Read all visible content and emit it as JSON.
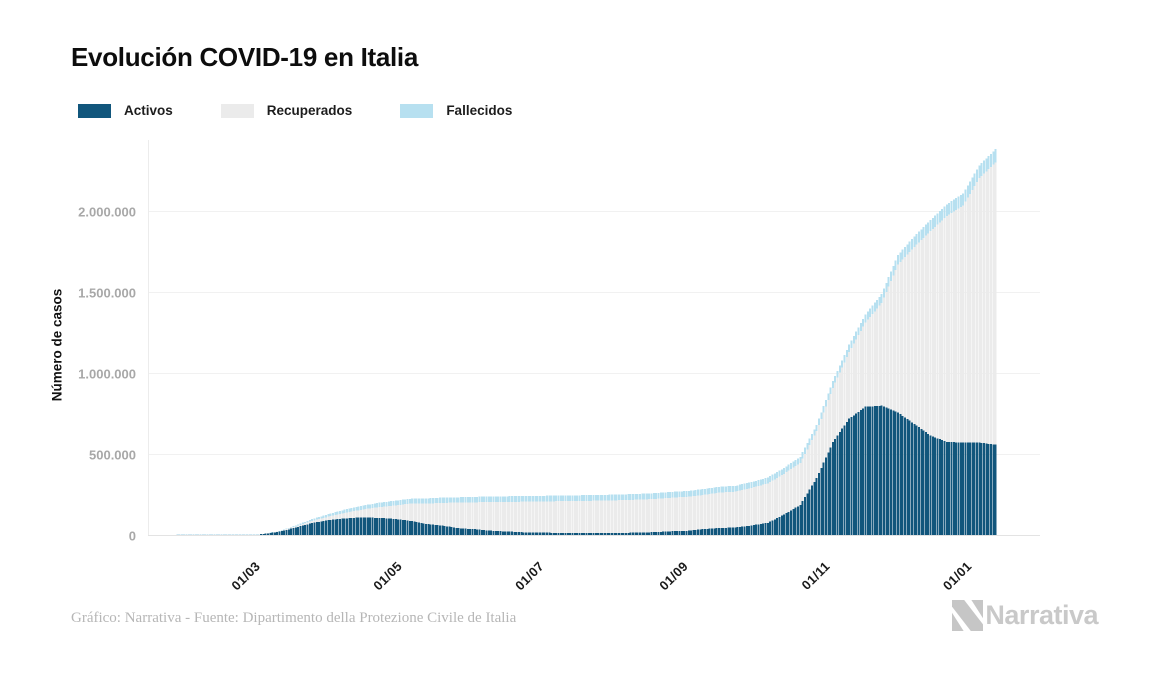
{
  "footer": {
    "credit": "Gráfico: Narrativa - Fuente: Dipartimento della Protezione Civile de Italia",
    "brand": "Narrativa"
  },
  "chart_data": {
    "type": "bar",
    "stacked": true,
    "title": "Evolución COVID-19 en Italia",
    "xlabel": "",
    "ylabel": "Número de casos",
    "grid": true,
    "legend_position": "top-left",
    "legend": [
      {
        "key": "activos",
        "label": "Activos",
        "color": "#11567c"
      },
      {
        "key": "recuperados",
        "label": "Recuperados",
        "color": "#ebebeb"
      },
      {
        "key": "fallecidos",
        "label": "Fallecidos",
        "color": "#b7e0f0"
      }
    ],
    "stack_order": [
      "activos",
      "recuperados",
      "fallecidos"
    ],
    "y_ticks": [
      "0",
      "500.000",
      "1.000.000",
      "1.500.000",
      "2.000.000"
    ],
    "y_tick_values": [
      0,
      500000,
      1000000,
      1500000,
      2000000
    ],
    "ylim": [
      0,
      2450000
    ],
    "x_ticks": [
      "01/03",
      "01/05",
      "01/07",
      "01/09",
      "01/11",
      "01/01"
    ],
    "x_tick_dates": [
      "2020-03-01",
      "2020-05-01",
      "2020-07-01",
      "2020-09-01",
      "2020-11-01",
      "2021-01-01"
    ],
    "samples": [
      {
        "date": "2020-01-31",
        "activos": 2,
        "recuperados": 0,
        "fallecidos": 0
      },
      {
        "date": "2020-02-07",
        "activos": 3,
        "recuperados": 0,
        "fallecidos": 0
      },
      {
        "date": "2020-02-14",
        "activos": 3,
        "recuperados": 0,
        "fallecidos": 0
      },
      {
        "date": "2020-02-21",
        "activos": 17,
        "recuperados": 1,
        "fallecidos": 1
      },
      {
        "date": "2020-02-24",
        "activos": 221,
        "recuperados": 1,
        "fallecidos": 7
      },
      {
        "date": "2020-03-01",
        "activos": 1577,
        "recuperados": 83,
        "fallecidos": 34
      },
      {
        "date": "2020-03-08",
        "activos": 6387,
        "recuperados": 622,
        "fallecidos": 366
      },
      {
        "date": "2020-03-15",
        "activos": 20603,
        "recuperados": 2335,
        "fallecidos": 1809
      },
      {
        "date": "2020-03-22",
        "activos": 46638,
        "recuperados": 7024,
        "fallecidos": 5476
      },
      {
        "date": "2020-03-29",
        "activos": 73880,
        "recuperados": 13030,
        "fallecidos": 10779
      },
      {
        "date": "2020-04-05",
        "activos": 91246,
        "recuperados": 21815,
        "fallecidos": 15887
      },
      {
        "date": "2020-04-12",
        "activos": 102253,
        "recuperados": 34211,
        "fallecidos": 19899
      },
      {
        "date": "2020-04-19",
        "activos": 108257,
        "recuperados": 47055,
        "fallecidos": 23660
      },
      {
        "date": "2020-04-26",
        "activos": 106103,
        "recuperados": 64928,
        "fallecidos": 26644
      },
      {
        "date": "2020-05-03",
        "activos": 100179,
        "recuperados": 81654,
        "fallecidos": 28884
      },
      {
        "date": "2020-05-10",
        "activos": 87961,
        "recuperados": 105186,
        "fallecidos": 30560
      },
      {
        "date": "2020-05-17",
        "activos": 68351,
        "recuperados": 125176,
        "fallecidos": 31908
      },
      {
        "date": "2020-05-24",
        "activos": 58320,
        "recuperados": 140479,
        "fallecidos": 32785
      },
      {
        "date": "2020-05-31",
        "activos": 42075,
        "recuperados": 157507,
        "fallecidos": 33415
      },
      {
        "date": "2020-06-07",
        "activos": 35877,
        "recuperados": 165837,
        "fallecidos": 33899
      },
      {
        "date": "2020-06-14",
        "activos": 26274,
        "recuperados": 177010,
        "fallecidos": 34335
      },
      {
        "date": "2020-06-21",
        "activos": 21543,
        "recuperados": 182893,
        "fallecidos": 34634
      },
      {
        "date": "2020-06-28",
        "activos": 16836,
        "recuperados": 188584,
        "fallecidos": 34716
      },
      {
        "date": "2020-07-05",
        "activos": 14642,
        "recuperados": 192108,
        "fallecidos": 34861
      },
      {
        "date": "2020-07-12",
        "activos": 13428,
        "recuperados": 194928,
        "fallecidos": 34945
      },
      {
        "date": "2020-07-19",
        "activos": 12404,
        "recuperados": 197162,
        "fallecidos": 35045
      },
      {
        "date": "2020-07-26",
        "activos": 12565,
        "recuperados": 198593,
        "fallecidos": 35102
      },
      {
        "date": "2020-08-02",
        "activos": 12474,
        "recuperados": 200229,
        "fallecidos": 35154
      },
      {
        "date": "2020-08-09",
        "activos": 12924,
        "recuperados": 202098,
        "fallecidos": 35203
      },
      {
        "date": "2020-08-16",
        "activos": 14867,
        "recuperados": 203326,
        "fallecidos": 35396
      },
      {
        "date": "2020-08-23",
        "activos": 17503,
        "recuperados": 204960,
        "fallecidos": 35430
      },
      {
        "date": "2020-08-30",
        "activos": 23035,
        "recuperados": 206902,
        "fallecidos": 35473
      },
      {
        "date": "2020-09-06",
        "activos": 26078,
        "recuperados": 209610,
        "fallecidos": 35541
      },
      {
        "date": "2020-09-13",
        "activos": 35708,
        "recuperados": 211272,
        "fallecidos": 35633
      },
      {
        "date": "2020-09-20",
        "activos": 43161,
        "recuperados": 218351,
        "fallecidos": 35707
      },
      {
        "date": "2020-09-27",
        "activos": 46114,
        "recuperados": 221762,
        "fallecidos": 35851
      },
      {
        "date": "2020-10-04",
        "activos": 58903,
        "recuperados": 231914,
        "fallecidos": 35941
      },
      {
        "date": "2020-10-11",
        "activos": 74829,
        "recuperados": 244065,
        "fallecidos": 36166
      },
      {
        "date": "2020-10-18",
        "activos": 126237,
        "recuperados": 251461,
        "fallecidos": 36543
      },
      {
        "date": "2020-10-25",
        "activos": 186002,
        "recuperados": 259456,
        "fallecidos": 37338
      },
      {
        "date": "2020-11-01",
        "activos": 351386,
        "recuperados": 289426,
        "fallecidos": 38826
      },
      {
        "date": "2020-11-08",
        "activos": 573334,
        "recuperados": 335074,
        "fallecidos": 41063
      },
      {
        "date": "2020-11-15",
        "activos": 717784,
        "recuperados": 411434,
        "fallecidos": 45229
      },
      {
        "date": "2020-11-22",
        "activos": 791697,
        "recuperados": 520022,
        "fallecidos": 49823
      },
      {
        "date": "2020-11-29",
        "activos": 798386,
        "recuperados": 634543,
        "fallecidos": 54904
      },
      {
        "date": "2020-12-06",
        "activos": 755306,
        "recuperados": 913494,
        "fallecidos": 60078
      },
      {
        "date": "2020-12-13",
        "activos": 686031,
        "recuperados": 1093161,
        "fallecidos": 64520
      },
      {
        "date": "2020-12-20",
        "activos": 613582,
        "recuperados": 1261626,
        "fallecidos": 68799
      },
      {
        "date": "2020-12-27",
        "activos": 575221,
        "recuperados": 1394011,
        "fallecidos": 71925
      },
      {
        "date": "2021-01-03",
        "activos": 569896,
        "recuperados": 1463111,
        "fallecidos": 75680
      },
      {
        "date": "2021-01-10",
        "activos": 570040,
        "recuperados": 1633839,
        "fallecidos": 78394
      },
      {
        "date": "2021-01-17",
        "activos": 557717,
        "recuperados": 1741749,
        "fallecidos": 81800
      }
    ]
  }
}
